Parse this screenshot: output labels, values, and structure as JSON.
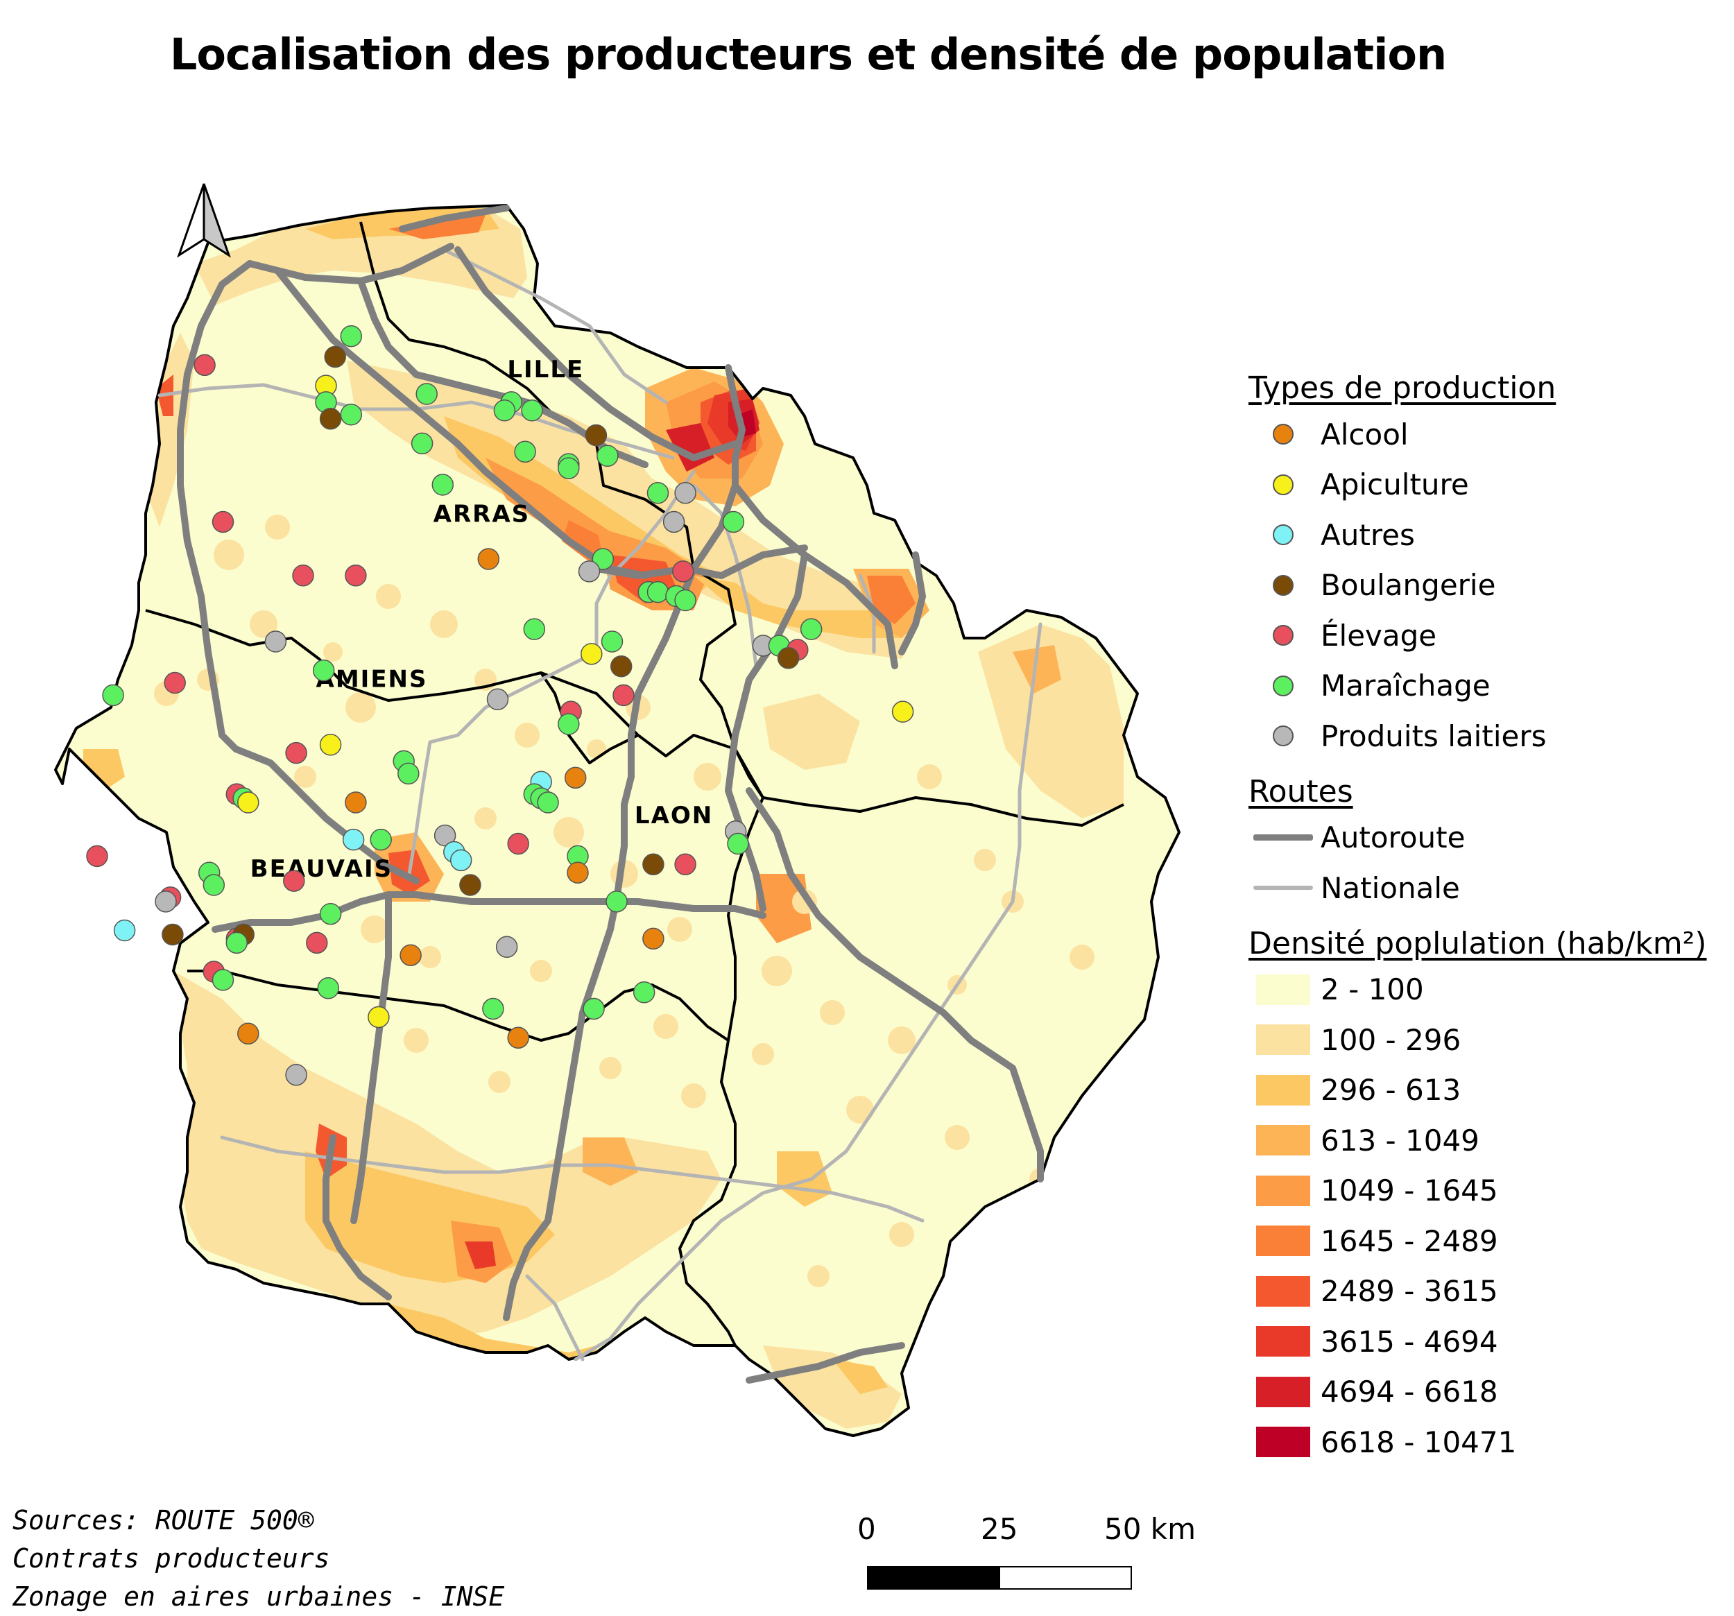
{
  "title": "Localisation des  producteurs et densité de population",
  "cities": [
    {
      "name": "LILLE",
      "lon": 3.06,
      "lat": 50.64
    },
    {
      "name": "ARRAS",
      "lon": 2.78,
      "lat": 50.29
    },
    {
      "name": "AMIENS",
      "lon": 2.3,
      "lat": 49.89
    },
    {
      "name": "LAON",
      "lon": 3.62,
      "lat": 49.56
    },
    {
      "name": "BEAUVAIS",
      "lon": 2.08,
      "lat": 49.43
    }
  ],
  "legend": {
    "production_title": "Types de production",
    "production_types": [
      {
        "key": "alcool",
        "label": "Alcool",
        "color": "#e8820f"
      },
      {
        "key": "apiculture",
        "label": "Apiculture",
        "color": "#f8f01a"
      },
      {
        "key": "autres",
        "label": "Autres",
        "color": "#7ff2f5"
      },
      {
        "key": "boulangerie",
        "label": "Boulangerie",
        "color": "#7a4a07"
      },
      {
        "key": "elevage",
        "label": "Élevage",
        "color": "#e8505e"
      },
      {
        "key": "maraichage",
        "label": "Maraîchage",
        "color": "#5cf060"
      },
      {
        "key": "laitiers",
        "label": "Produits laitiers",
        "color": "#b8b8b8"
      }
    ],
    "routes_title": "Routes",
    "routes": [
      {
        "key": "autoroute",
        "label": "Autoroute",
        "color": "#7f7f7f"
      },
      {
        "key": "nationale",
        "label": "Nationale",
        "color": "#b4b4b4"
      }
    ],
    "density_title": "Densité poplulation (hab/km²)",
    "density_classes": [
      {
        "label": "2 - 100",
        "color": "#fbfdcf"
      },
      {
        "label": "100 - 296",
        "color": "#fbe2a0"
      },
      {
        "label": "296 - 613",
        "color": "#fcc864"
      },
      {
        "label": "613 - 1049",
        "color": "#fcb457"
      },
      {
        "label": "1049 - 1645",
        "color": "#fc9c46"
      },
      {
        "label": "1645 - 2489",
        "color": "#fb8037"
      },
      {
        "label": "2489 - 3615",
        "color": "#f4582e"
      },
      {
        "label": "3615 - 4694",
        "color": "#e93a29"
      },
      {
        "label": "4694 - 6618",
        "color": "#d61f26"
      },
      {
        "label": "6618 - 10471",
        "color": "#be0026"
      }
    ]
  },
  "scale_bar": {
    "ticks": [
      "0",
      "25",
      "50 km"
    ]
  },
  "sources": [
    "Sources: ROUTE 500®",
    "Contrats producteurs",
    "Zonage en aires urbaines  - INSE"
  ],
  "producers": [
    {
      "type": "maraichage",
      "lon": 2.21,
      "lat": 50.74
    },
    {
      "type": "boulangerie",
      "lon": 2.14,
      "lat": 50.69
    },
    {
      "type": "elevage",
      "lon": 1.57,
      "lat": 50.67
    },
    {
      "type": "apiculture",
      "lon": 2.1,
      "lat": 50.62
    },
    {
      "type": "maraichage",
      "lon": 2.54,
      "lat": 50.6
    },
    {
      "type": "maraichage",
      "lon": 2.1,
      "lat": 50.58
    },
    {
      "type": "maraichage",
      "lon": 2.21,
      "lat": 50.55
    },
    {
      "type": "boulangerie",
      "lon": 2.12,
      "lat": 50.54
    },
    {
      "type": "maraichage",
      "lon": 2.91,
      "lat": 50.58
    },
    {
      "type": "maraichage",
      "lon": 2.88,
      "lat": 50.56
    },
    {
      "type": "maraichage",
      "lon": 3.0,
      "lat": 50.56
    },
    {
      "type": "boulangerie",
      "lon": 3.28,
      "lat": 50.5
    },
    {
      "type": "maraichage",
      "lon": 2.52,
      "lat": 50.48
    },
    {
      "type": "maraichage",
      "lon": 2.97,
      "lat": 50.46
    },
    {
      "type": "maraichage",
      "lon": 3.16,
      "lat": 50.43
    },
    {
      "type": "maraichage",
      "lon": 3.33,
      "lat": 50.45
    },
    {
      "type": "maraichage",
      "lon": 3.16,
      "lat": 50.42
    },
    {
      "type": "maraichage",
      "lon": 2.61,
      "lat": 50.38
    },
    {
      "type": "maraichage",
      "lon": 3.55,
      "lat": 50.36
    },
    {
      "type": "laitiers",
      "lon": 3.67,
      "lat": 50.36
    },
    {
      "type": "elevage",
      "lon": 1.65,
      "lat": 50.29
    },
    {
      "type": "laitiers",
      "lon": 3.62,
      "lat": 50.29
    },
    {
      "type": "maraichage",
      "lon": 3.88,
      "lat": 50.29
    },
    {
      "type": "alcool",
      "lon": 2.81,
      "lat": 50.2
    },
    {
      "type": "maraichage",
      "lon": 3.31,
      "lat": 50.2
    },
    {
      "type": "laitiers",
      "lon": 3.25,
      "lat": 50.17
    },
    {
      "type": "elevage",
      "lon": 2.0,
      "lat": 50.16
    },
    {
      "type": "elevage",
      "lon": 2.23,
      "lat": 50.16
    },
    {
      "type": "elevage",
      "lon": 3.66,
      "lat": 50.17
    },
    {
      "type": "maraichage",
      "lon": 3.51,
      "lat": 50.12
    },
    {
      "type": "maraichage",
      "lon": 3.55,
      "lat": 50.12
    },
    {
      "type": "maraichage",
      "lon": 3.63,
      "lat": 50.11
    },
    {
      "type": "maraichage",
      "lon": 3.67,
      "lat": 50.1
    },
    {
      "type": "maraichage",
      "lon": 3.01,
      "lat": 50.03
    },
    {
      "type": "maraichage",
      "lon": 4.22,
      "lat": 50.03
    },
    {
      "type": "laitiers",
      "lon": 1.88,
      "lat": 50.0
    },
    {
      "type": "maraichage",
      "lon": 3.35,
      "lat": 50.0
    },
    {
      "type": "laitiers",
      "lon": 4.01,
      "lat": 49.99
    },
    {
      "type": "maraichage",
      "lon": 4.08,
      "lat": 49.99
    },
    {
      "type": "elevage",
      "lon": 4.16,
      "lat": 49.98
    },
    {
      "type": "apiculture",
      "lon": 3.26,
      "lat": 49.97
    },
    {
      "type": "boulangerie",
      "lon": 4.12,
      "lat": 49.96
    },
    {
      "type": "boulangerie",
      "lon": 3.39,
      "lat": 49.94
    },
    {
      "type": "maraichage",
      "lon": 2.09,
      "lat": 49.93
    },
    {
      "type": "elevage",
      "lon": 1.44,
      "lat": 49.9
    },
    {
      "type": "maraichage",
      "lon": 1.17,
      "lat": 49.87
    },
    {
      "type": "laitiers",
      "lon": 2.85,
      "lat": 49.86
    },
    {
      "type": "elevage",
      "lon": 3.4,
      "lat": 49.87
    },
    {
      "type": "elevage",
      "lon": 3.17,
      "lat": 49.83
    },
    {
      "type": "maraichage",
      "lon": 3.16,
      "lat": 49.8
    },
    {
      "type": "apiculture",
      "lon": 2.12,
      "lat": 49.75
    },
    {
      "type": "elevage",
      "lon": 1.97,
      "lat": 49.73
    },
    {
      "type": "maraichage",
      "lon": 2.44,
      "lat": 49.71
    },
    {
      "type": "maraichage",
      "lon": 2.46,
      "lat": 49.68
    },
    {
      "type": "alcool",
      "lon": 3.19,
      "lat": 49.67
    },
    {
      "type": "autres",
      "lon": 3.04,
      "lat": 49.66
    },
    {
      "type": "elevage",
      "lon": 1.71,
      "lat": 49.63
    },
    {
      "type": "maraichage",
      "lon": 3.01,
      "lat": 49.63
    },
    {
      "type": "maraichage",
      "lon": 3.04,
      "lat": 49.62
    },
    {
      "type": "maraichage",
      "lon": 1.74,
      "lat": 49.62
    },
    {
      "type": "apiculture",
      "lon": 1.76,
      "lat": 49.61
    },
    {
      "type": "alcool",
      "lon": 2.23,
      "lat": 49.61
    },
    {
      "type": "maraichage",
      "lon": 3.07,
      "lat": 49.61
    },
    {
      "type": "laitiers",
      "lon": 2.62,
      "lat": 49.53
    },
    {
      "type": "autres",
      "lon": 2.22,
      "lat": 49.52
    },
    {
      "type": "maraichage",
      "lon": 2.34,
      "lat": 49.52
    },
    {
      "type": "laitiers",
      "lon": 3.89,
      "lat": 49.54
    },
    {
      "type": "maraichage",
      "lon": 3.9,
      "lat": 49.51
    },
    {
      "type": "elevage",
      "lon": 2.94,
      "lat": 49.51
    },
    {
      "type": "autres",
      "lon": 2.66,
      "lat": 49.49
    },
    {
      "type": "autres",
      "lon": 2.69,
      "lat": 49.47
    },
    {
      "type": "elevage",
      "lon": 1.1,
      "lat": 49.48
    },
    {
      "type": "maraichage",
      "lon": 3.2,
      "lat": 49.48
    },
    {
      "type": "boulangerie",
      "lon": 3.53,
      "lat": 49.46
    },
    {
      "type": "elevage",
      "lon": 3.67,
      "lat": 49.46
    },
    {
      "type": "alcool",
      "lon": 3.2,
      "lat": 49.44
    },
    {
      "type": "maraichage",
      "lon": 1.59,
      "lat": 49.44
    },
    {
      "type": "maraichage",
      "lon": 1.61,
      "lat": 49.41
    },
    {
      "type": "elevage",
      "lon": 1.96,
      "lat": 49.42
    },
    {
      "type": "boulangerie",
      "lon": 2.73,
      "lat": 49.41
    },
    {
      "type": "elevage",
      "lon": 1.42,
      "lat": 49.38
    },
    {
      "type": "laitiers",
      "lon": 1.4,
      "lat": 49.37
    },
    {
      "type": "maraichage",
      "lon": 3.37,
      "lat": 49.37
    },
    {
      "type": "maraichage",
      "lon": 2.12,
      "lat": 49.34
    },
    {
      "type": "autres",
      "lon": 1.22,
      "lat": 49.3
    },
    {
      "type": "boulangerie",
      "lon": 1.43,
      "lat": 49.29
    },
    {
      "type": "elevage",
      "lon": 1.71,
      "lat": 49.28
    },
    {
      "type": "boulangerie",
      "lon": 1.74,
      "lat": 49.29
    },
    {
      "type": "maraichage",
      "lon": 1.71,
      "lat": 49.27
    },
    {
      "type": "elevage",
      "lon": 2.06,
      "lat": 49.27
    },
    {
      "type": "alcool",
      "lon": 3.53,
      "lat": 49.28
    },
    {
      "type": "laitiers",
      "lon": 2.89,
      "lat": 49.26
    },
    {
      "type": "alcool",
      "lon": 2.47,
      "lat": 49.24
    },
    {
      "type": "elevage",
      "lon": 1.61,
      "lat": 49.2
    },
    {
      "type": "maraichage",
      "lon": 1.65,
      "lat": 49.18
    },
    {
      "type": "maraichage",
      "lon": 2.11,
      "lat": 49.16
    },
    {
      "type": "maraichage",
      "lon": 3.49,
      "lat": 49.15
    },
    {
      "type": "maraichage",
      "lon": 3.27,
      "lat": 49.11
    },
    {
      "type": "maraichage",
      "lon": 2.83,
      "lat": 49.11
    },
    {
      "type": "apiculture",
      "lon": 2.33,
      "lat": 49.09
    },
    {
      "type": "alcool",
      "lon": 1.76,
      "lat": 49.05
    },
    {
      "type": "alcool",
      "lon": 2.94,
      "lat": 49.04
    },
    {
      "type": "laitiers",
      "lon": 1.97,
      "lat": 48.95
    },
    {
      "type": "apiculture",
      "lon": 4.62,
      "lat": 49.83
    }
  ]
}
